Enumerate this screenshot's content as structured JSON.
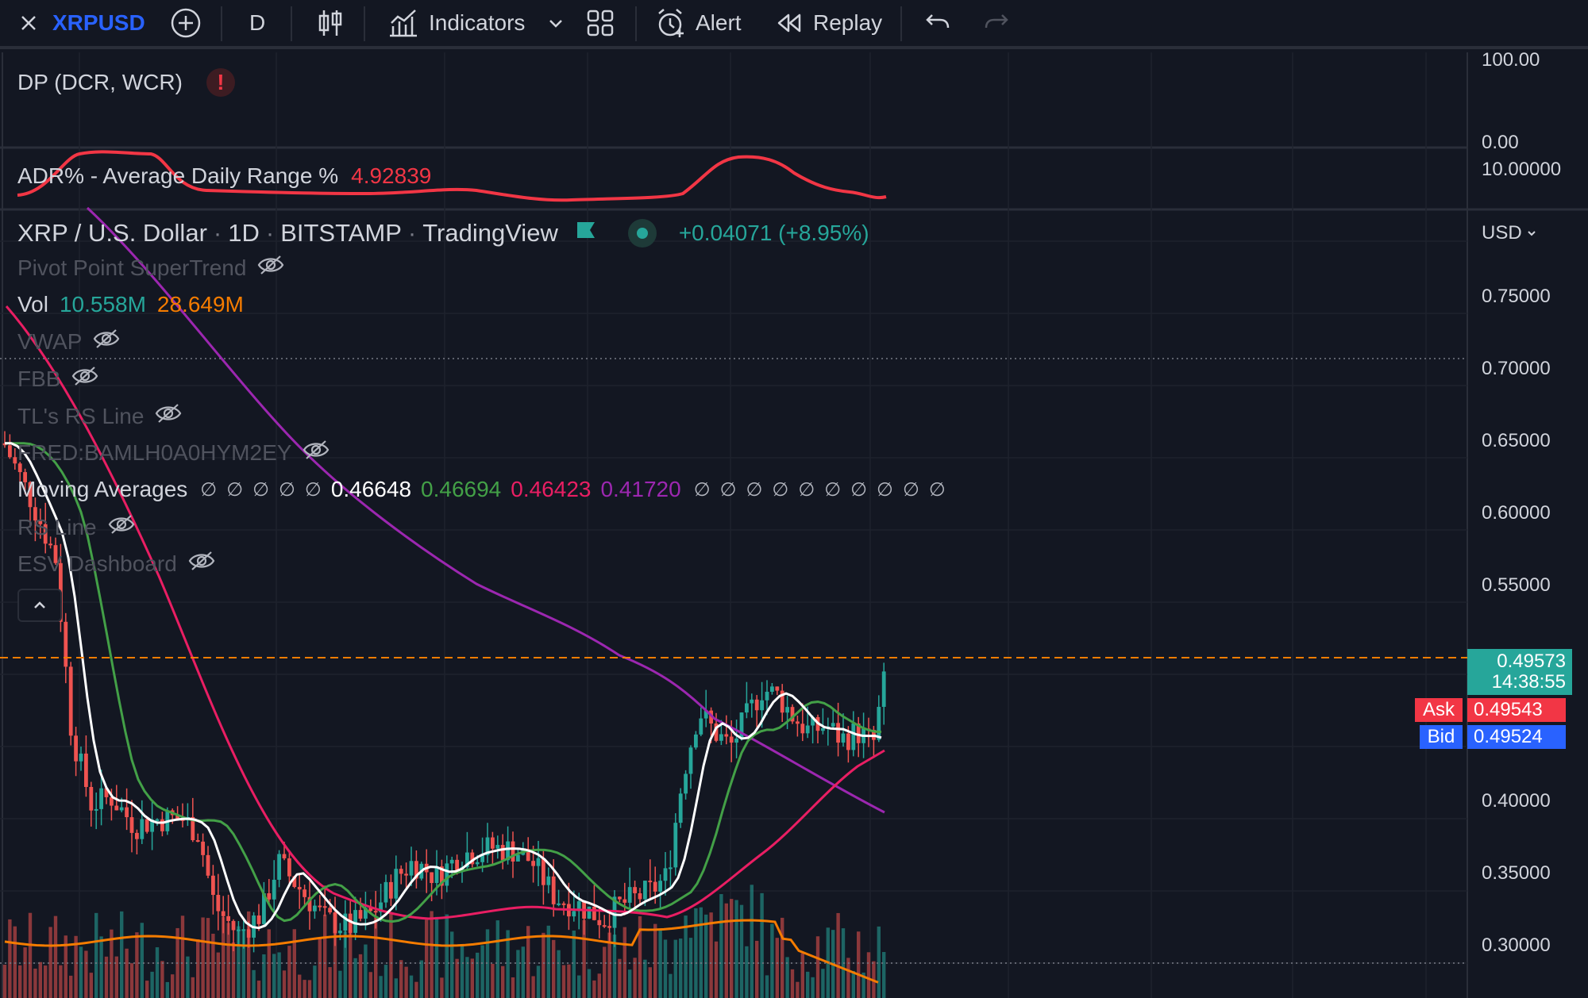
{
  "toolbar": {
    "symbol": "XRPUSD",
    "interval": "D",
    "indicators_label": "Indicators",
    "alert_label": "Alert",
    "replay_label": "Replay"
  },
  "pane_dp": {
    "name": "DP (DCR, WCR)",
    "scale_top": "100.00",
    "scale_bottom": "0.00"
  },
  "pane_adr": {
    "name": "ADR% - Average Daily Range %",
    "value": "4.92839",
    "scale": "10.00000"
  },
  "main_legend": {
    "title": "XRP / U.S. Dollar",
    "interval": "1D",
    "exchange": "BITSTAMP",
    "source": "TradingView",
    "change": "+0.04071 (+8.95%)",
    "currency": "USD"
  },
  "indicators": [
    {
      "name": "Pivot Point SuperTrend",
      "hidden": true
    },
    {
      "name": "Vol",
      "values": [
        "10.558M",
        "28.649M"
      ]
    },
    {
      "name": "VWAP",
      "hidden": true
    },
    {
      "name": "FBB",
      "hidden": true
    },
    {
      "name": "TL's RS Line",
      "hidden": true
    },
    {
      "name": "FRED:BAMLH0A0HYM2EY",
      "hidden": true
    },
    {
      "name": "Moving Averages",
      "values": [
        "0.46648",
        "0.46694",
        "0.46423",
        "0.41720"
      ]
    },
    {
      "name": "RS Line",
      "hidden": true
    },
    {
      "name": "ESV Dashboard",
      "hidden": true
    }
  ],
  "price_axis": [
    "0.75000",
    "0.70000",
    "0.65000",
    "0.60000",
    "0.55000",
    "0.40000",
    "0.35000",
    "0.30000"
  ],
  "last_price": {
    "value": "0.49573",
    "countdown": "14:38:55"
  },
  "ask": {
    "label": "Ask",
    "value": "0.49543"
  },
  "bid": {
    "label": "Bid",
    "value": "0.49524"
  },
  "colors": {
    "background": "#131722",
    "up": "#26a69a",
    "down": "#ef5350",
    "ma_white": "#ffffff",
    "ma_green": "#43a047",
    "ma_pink": "#e91e63",
    "ma_purple": "#9c27b0",
    "vol_ma": "#f57c00",
    "adr": "#f23645",
    "accent": "#2962ff"
  }
}
